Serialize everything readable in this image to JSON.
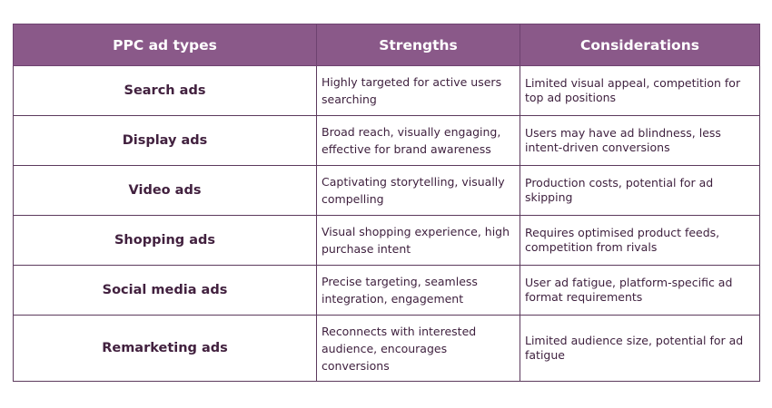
{
  "table": {
    "headers": [
      "PPC ad types",
      "Strengths",
      "Considerations"
    ],
    "rows": [
      {
        "type": "Search ads",
        "strengths": "Highly targeted for active users searching",
        "considerations": "Limited visual appeal, competition for top ad positions"
      },
      {
        "type": "Display ads",
        "strengths": "Broad reach, visually engaging, effective for brand awareness",
        "considerations": "Users may have ad blindness, less intent-driven conversions"
      },
      {
        "type": "Video ads",
        "strengths": "Captivating storytelling, visually compelling",
        "considerations": "Production costs, potential for ad skipping"
      },
      {
        "type": "Shopping ads",
        "strengths": "Visual shopping experience, high purchase intent",
        "considerations": "Requires optimised product feeds, competition from rivals"
      },
      {
        "type": "Social media ads",
        "strengths": "Precise targeting, seamless integration, engagement",
        "considerations": "User ad fatigue, platform-specific ad format requirements"
      },
      {
        "type": "Remarketing ads",
        "strengths": "Reconnects with interested audience, encourages conversions",
        "considerations": "Limited audience size, potential for ad fatigue"
      }
    ]
  },
  "colors": {
    "header_background": "#8a5989",
    "header_text": "#ffffff",
    "border": "#5c3a5d",
    "body_text": "#3d1f3d"
  }
}
